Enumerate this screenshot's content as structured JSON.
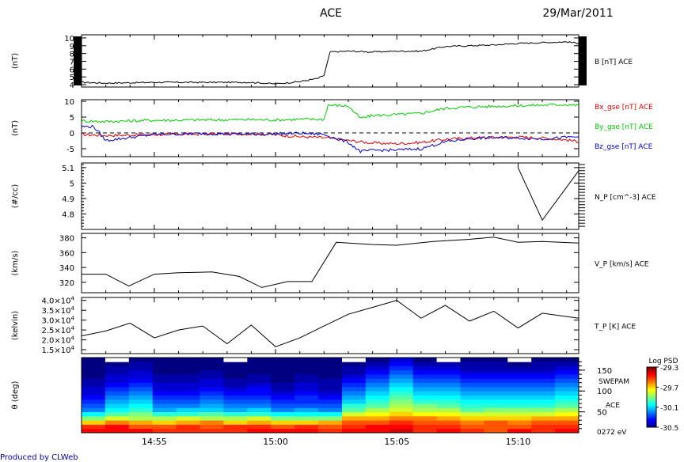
{
  "header": {
    "title": "ACE",
    "date": "29/Mar/2011"
  },
  "footer": {
    "credit": "Produced by CLWeb"
  },
  "time_axis": {
    "range": [
      "14:52:00",
      "15:12:30"
    ],
    "ticks": [
      "14:55",
      "15:00",
      "15:05",
      "15:10"
    ]
  },
  "chart_data": [
    {
      "type": "line",
      "panel": "B",
      "ylabel": "(nT)",
      "ylim": [
        3.7,
        10.4
      ],
      "yticks": [
        4,
        5,
        6,
        7,
        8,
        9,
        10
      ],
      "series": [
        {
          "name": "B [nT] ACE",
          "color": "#000000",
          "x": [
            "14:52",
            "14:53",
            "14:55",
            "14:57",
            "14:59",
            "15:00",
            "15:01",
            "15:01:45",
            "15:02:00",
            "15:02:15",
            "15:03",
            "15:04",
            "15:05",
            "15:06",
            "15:07",
            "15:08",
            "15:09",
            "15:10",
            "15:11",
            "15:12",
            "15:12:30"
          ],
          "y": [
            4.3,
            4.2,
            4.3,
            4.3,
            4.3,
            4.1,
            4.4,
            4.8,
            5.2,
            8.2,
            8.3,
            8.2,
            8.3,
            8.3,
            8.9,
            9.0,
            9.1,
            9.3,
            9.4,
            9.5,
            9.3
          ]
        }
      ],
      "legend_position": "right"
    },
    {
      "type": "line",
      "panel": "B components",
      "ylabel": "(nT)",
      "ylim": [
        -7.5,
        10.5
      ],
      "yticks": [
        -5,
        0,
        5,
        10
      ],
      "reference_line": 0,
      "series": [
        {
          "name": "Bx_gse [nT] ACE",
          "color": "#dd0000",
          "x": [
            "14:52",
            "14:53",
            "14:55",
            "14:57",
            "14:59",
            "15:00",
            "15:01",
            "15:02",
            "15:03",
            "15:04",
            "15:05",
            "15:06",
            "15:07",
            "15:08",
            "15:09",
            "15:10",
            "15:11",
            "15:12",
            "15:12:30"
          ],
          "y": [
            -0.5,
            -0.8,
            -0.5,
            -0.4,
            -0.3,
            -0.6,
            -1.2,
            -1.5,
            -2.4,
            -3.2,
            -3.4,
            -3.0,
            -2.0,
            -1.6,
            -1.4,
            -1.3,
            -1.6,
            -2.2,
            -2.8
          ]
        },
        {
          "name": "By_gse [nT] ACE",
          "color": "#00cc00",
          "x": [
            "14:52",
            "14:53",
            "14:55",
            "14:57",
            "14:59",
            "15:00",
            "15:01",
            "15:02",
            "15:02:10",
            "15:03",
            "15:03:30",
            "15:04",
            "15:05",
            "15:06",
            "15:07",
            "15:08",
            "15:09",
            "15:10",
            "15:11",
            "15:12",
            "15:12:30"
          ],
          "y": [
            3.8,
            3.6,
            4.0,
            4.1,
            4.2,
            4.1,
            4.3,
            4.3,
            8.8,
            8.5,
            4.6,
            5.5,
            5.8,
            6.2,
            7.8,
            8.2,
            8.4,
            8.6,
            8.8,
            9.0,
            8.7
          ]
        },
        {
          "name": "Bz_gse [nT] ACE",
          "color": "#0000cc",
          "x": [
            "14:52",
            "14:52:30",
            "14:53",
            "14:55",
            "14:57",
            "14:59",
            "15:00",
            "15:01",
            "15:02",
            "15:03",
            "15:03:30",
            "15:04",
            "15:05",
            "15:06",
            "15:07",
            "15:08",
            "15:09",
            "15:10",
            "15:11",
            "15:12",
            "15:12:30"
          ],
          "y": [
            2.0,
            2.0,
            -2.4,
            -0.5,
            -0.2,
            -0.4,
            -0.3,
            -0.1,
            -0.5,
            -3.0,
            -5.9,
            -5.5,
            -5.4,
            -5.0,
            -2.8,
            -1.8,
            -1.5,
            -1.6,
            -1.9,
            -1.4,
            -1.2
          ]
        }
      ],
      "legend_position": "right"
    },
    {
      "type": "line",
      "panel": "density",
      "ylabel": "(#/cc)",
      "ylim": [
        4.7,
        5.13
      ],
      "yticks": [
        4.8,
        4.9,
        5.0,
        5.1
      ],
      "series": [
        {
          "name": "N_P [cm^-3] ACE",
          "color": "#000000",
          "x": [
            "15:10:00",
            "15:11:00",
            "15:12:30"
          ],
          "y": [
            5.1,
            4.76,
            5.08
          ]
        }
      ],
      "legend_position": "right"
    },
    {
      "type": "line",
      "panel": "speed",
      "ylabel": "(km/s)",
      "ylim": [
        306,
        386
      ],
      "yticks": [
        320,
        340,
        360,
        380
      ],
      "series": [
        {
          "name": "V_P [km/s] ACE",
          "color": "#000000",
          "x": [
            "14:52:00",
            "14:53:00",
            "14:53:57",
            "14:55:00",
            "14:56:00",
            "14:57:23",
            "14:58:30",
            "14:59:26",
            "15:00:30",
            "15:01:30",
            "15:02:30",
            "15:04:00",
            "15:05:00",
            "15:06:30",
            "15:08:00",
            "15:09:00",
            "15:10:00",
            "15:11:00",
            "15:12:30"
          ],
          "y": [
            331,
            331,
            315,
            331,
            333,
            334,
            328,
            313,
            321,
            321,
            374,
            371,
            370,
            375,
            378,
            381,
            374,
            375,
            373
          ]
        }
      ],
      "legend_position": "right"
    },
    {
      "type": "line",
      "panel": "temperature",
      "ylabel": "(kelvin)",
      "ylim": [
        13000,
        41500
      ],
      "ytick_values": [
        15000,
        20000,
        25000,
        30000,
        35000,
        40000
      ],
      "ytick_labels": [
        {
          "mantissa": "1.5×10",
          "exp": "4"
        },
        {
          "mantissa": "2.0×10",
          "exp": "4"
        },
        {
          "mantissa": "2.5×10",
          "exp": "4"
        },
        {
          "mantissa": "3.0×10",
          "exp": "4"
        },
        {
          "mantissa": "3.5×10",
          "exp": "4"
        },
        {
          "mantissa": "4.0×10",
          "exp": "4"
        }
      ],
      "series": [
        {
          "name": "T_P [K] ACE",
          "color": "#000000",
          "x": [
            "14:52:00",
            "14:53:00",
            "14:54:00",
            "14:55:00",
            "14:56:00",
            "14:57:00",
            "14:58:00",
            "14:59:00",
            "15:00:00",
            "15:01:00",
            "15:02:00",
            "15:03:00",
            "15:04:00",
            "15:05:00",
            "15:06:00",
            "15:07:00",
            "15:08:00",
            "15:09:00",
            "15:10:00",
            "15:11:00",
            "15:12:30"
          ],
          "y": [
            22000,
            24500,
            28500,
            21000,
            25000,
            27000,
            18000,
            27500,
            16500,
            21000,
            27000,
            33000,
            36500,
            40000,
            31000,
            37500,
            29500,
            34500,
            26000,
            33500,
            31000
          ]
        }
      ],
      "legend_position": "right"
    },
    {
      "type": "heatmap",
      "panel": "pitch angle",
      "ylabel": "θ (deg)",
      "yticks": [
        50,
        100,
        150
      ],
      "ylim": [
        0,
        180
      ],
      "x_bins": [
        "14:52",
        "14:53",
        "14:54",
        "14:55",
        "14:56",
        "14:57",
        "14:58",
        "14:59",
        "15:00",
        "15:01",
        "15:02",
        "15:03",
        "15:04",
        "15:05",
        "15:06",
        "15:07",
        "15:08",
        "15:09",
        "15:10",
        "15:11",
        "15:12"
      ],
      "y_bins": [
        0,
        10,
        20,
        30,
        40,
        50,
        60,
        70,
        80,
        90,
        100,
        110,
        120,
        130,
        140,
        150,
        160,
        170
      ],
      "instrument_labels": [
        "SWEPAM",
        "ACE"
      ],
      "energy_label": "0272 eV",
      "colorbar": {
        "title": "Log PSD",
        "min": -30.5,
        "max": -29.3,
        "ticks": [
          -29.3,
          -29.7,
          -30.1,
          -30.5
        ]
      },
      "values": [
        [
          -29.45,
          -29.45,
          -29.45,
          -29.5,
          -29.5,
          -29.5,
          -29.5,
          -29.45,
          -29.45,
          -29.45,
          -29.5,
          -29.45,
          -29.45,
          -29.4,
          -29.5,
          -29.45,
          -29.5,
          -29.55,
          -29.45,
          -29.5,
          -29.45
        ],
        [
          -29.5,
          -29.45,
          -29.55,
          -29.55,
          -29.5,
          -29.55,
          -29.5,
          -29.5,
          -29.55,
          -29.5,
          -29.55,
          -29.5,
          -29.45,
          -29.45,
          -29.5,
          -29.5,
          -29.55,
          -29.55,
          -29.55,
          -29.5,
          -29.5
        ],
        [
          -29.7,
          -29.6,
          -29.65,
          -29.7,
          -29.65,
          -29.6,
          -29.7,
          -29.65,
          -29.7,
          -29.7,
          -29.65,
          -29.55,
          -29.55,
          -29.5,
          -29.55,
          -29.55,
          -29.6,
          -29.55,
          -29.6,
          -29.55,
          -29.55
        ],
        [
          -29.9,
          -29.8,
          -29.85,
          -29.85,
          -29.8,
          -29.85,
          -29.85,
          -29.8,
          -29.9,
          -29.9,
          -29.9,
          -29.65,
          -29.65,
          -29.6,
          -29.6,
          -29.65,
          -29.7,
          -29.7,
          -29.7,
          -29.65,
          -29.65
        ],
        [
          -30.05,
          -29.95,
          -29.9,
          -30.0,
          -30.0,
          -29.95,
          -30.0,
          -30.0,
          -30.05,
          -30.05,
          -30.05,
          -29.8,
          -29.75,
          -29.7,
          -29.75,
          -29.75,
          -29.8,
          -29.8,
          -29.8,
          -29.8,
          -29.75
        ],
        [
          -30.2,
          -30.05,
          -30.0,
          -30.15,
          -30.1,
          -30.1,
          -30.15,
          -30.1,
          -30.2,
          -30.15,
          -30.2,
          -29.95,
          -29.85,
          -29.8,
          -29.85,
          -29.85,
          -29.95,
          -29.9,
          -29.9,
          -29.9,
          -29.85
        ],
        [
          -30.25,
          -30.1,
          -30.05,
          -30.2,
          -30.2,
          -30.15,
          -30.2,
          -30.2,
          -30.25,
          -30.25,
          -30.25,
          -30.0,
          -29.95,
          -29.85,
          -29.9,
          -29.95,
          -30.0,
          -30.0,
          -30.0,
          -30.0,
          -29.95
        ],
        [
          -30.3,
          -30.15,
          -30.1,
          -30.25,
          -30.25,
          -30.2,
          -30.25,
          -30.25,
          -30.3,
          -30.3,
          -30.3,
          -30.1,
          -30.0,
          -29.9,
          -30.0,
          -30.0,
          -30.05,
          -30.05,
          -30.05,
          -30.05,
          -30.0
        ],
        [
          -30.35,
          -30.2,
          -30.15,
          -30.3,
          -30.3,
          -30.25,
          -30.3,
          -30.3,
          -30.35,
          -30.3,
          -30.35,
          -30.15,
          -30.05,
          -29.95,
          -30.05,
          -30.05,
          -30.1,
          -30.1,
          -30.1,
          -30.1,
          -30.05
        ],
        [
          -30.4,
          -30.25,
          -30.2,
          -30.35,
          -30.35,
          -30.3,
          -30.35,
          -30.35,
          -30.4,
          -30.35,
          -30.4,
          -30.2,
          -30.1,
          -30.0,
          -30.1,
          -30.1,
          -30.15,
          -30.15,
          -30.15,
          -30.15,
          -30.1
        ],
        [
          -30.4,
          -30.3,
          -30.25,
          -30.4,
          -30.4,
          -30.35,
          -30.4,
          -30.35,
          -30.45,
          -30.4,
          -30.45,
          -30.25,
          -30.15,
          -30.05,
          -30.15,
          -30.15,
          -30.2,
          -30.2,
          -30.2,
          -30.2,
          -30.15
        ],
        [
          -30.45,
          -30.35,
          -30.3,
          -30.4,
          -30.4,
          -30.4,
          -30.45,
          -30.4,
          -30.45,
          -30.4,
          -30.45,
          -30.3,
          -30.2,
          -30.1,
          -30.2,
          -30.2,
          -30.25,
          -30.25,
          -30.25,
          -30.25,
          -30.2
        ],
        [
          -30.45,
          -30.4,
          -30.35,
          -30.45,
          -30.45,
          -30.4,
          -30.45,
          -30.45,
          -30.5,
          -30.45,
          -30.45,
          -30.35,
          -30.25,
          -30.15,
          -30.25,
          -30.25,
          -30.3,
          -30.3,
          -30.3,
          -30.3,
          -30.25
        ],
        [
          -30.5,
          -30.4,
          -30.4,
          -30.45,
          -30.45,
          -30.45,
          -30.5,
          -30.45,
          -30.5,
          -30.45,
          -30.5,
          -30.4,
          -30.3,
          -30.2,
          -30.3,
          -30.3,
          -30.35,
          -30.35,
          -30.35,
          -30.35,
          -30.3
        ],
        [
          -30.5,
          -30.45,
          -30.4,
          -30.5,
          -30.5,
          -30.45,
          -30.5,
          -30.5,
          -30.5,
          -30.5,
          -30.5,
          -30.45,
          -30.35,
          -30.25,
          -30.35,
          -30.35,
          -30.4,
          -30.4,
          -30.4,
          -30.4,
          -30.35
        ],
        [
          -30.5,
          -30.45,
          -30.45,
          -30.5,
          -30.5,
          -30.5,
          -30.5,
          -30.5,
          -30.5,
          -30.5,
          -30.5,
          -30.45,
          -30.4,
          -30.3,
          -30.4,
          -30.4,
          -30.45,
          -30.45,
          -30.45,
          -30.45,
          -30.4
        ],
        [
          -30.5,
          -30.5,
          -30.45,
          -30.5,
          -30.5,
          -30.5,
          -30.5,
          -30.5,
          -30.5,
          -30.5,
          -30.5,
          -30.5,
          -30.45,
          -30.35,
          -30.45,
          -30.45,
          -30.45,
          -30.45,
          -30.5,
          -30.45,
          -30.45
        ],
        [
          -30.5,
          null,
          -30.5,
          -30.5,
          -30.5,
          -30.5,
          null,
          -30.5,
          -30.5,
          -30.5,
          -30.5,
          null,
          -30.5,
          -30.4,
          -30.5,
          null,
          -30.5,
          -30.5,
          null,
          -30.5,
          -30.5
        ]
      ]
    }
  ]
}
